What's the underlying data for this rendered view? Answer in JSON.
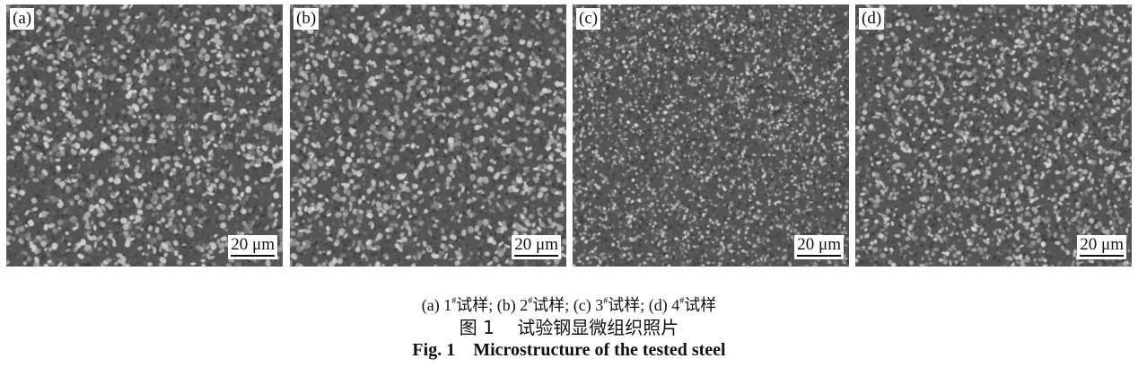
{
  "figure": {
    "panels": [
      {
        "label": "(a)",
        "scale_bar": "20 μm",
        "texture": "coarse"
      },
      {
        "label": "(b)",
        "scale_bar": "20 μm",
        "texture": "coarse"
      },
      {
        "label": "(c)",
        "scale_bar": "20 μm",
        "texture": "fine"
      },
      {
        "label": "(d)",
        "scale_bar": "20 μm",
        "texture": "medium"
      }
    ],
    "subcaption": {
      "parts": [
        {
          "prefix": "(a) 1",
          "sup": "#",
          "suffix": "试样; "
        },
        {
          "prefix": "(b) 2",
          "sup": "#",
          "suffix": "试样; "
        },
        {
          "prefix": "(c) 3",
          "sup": "#",
          "suffix": "试样; "
        },
        {
          "prefix": "(d) 4",
          "sup": "#",
          "suffix": "试样"
        }
      ]
    },
    "caption_cn": "图 1    试验钢显微组织照片",
    "caption_en": "Fig. 1    Microstructure of the tested steel"
  }
}
